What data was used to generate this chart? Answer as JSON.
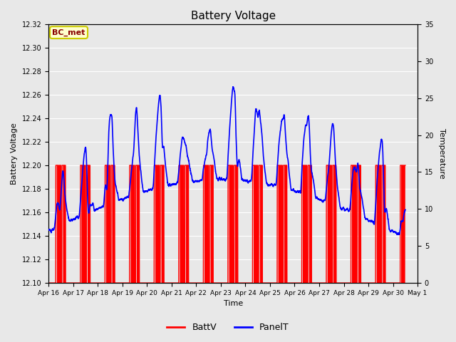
{
  "title": "Battery Voltage",
  "xlabel": "Time",
  "ylabel_left": "Battery Voltage",
  "ylabel_right": "Temperature",
  "ylim_left": [
    12.1,
    12.32
  ],
  "ylim_right": [
    0,
    35
  ],
  "background_color": "#e8e8e8",
  "plot_bg_color": "#e8e8e8",
  "grid_color": "#ffffff",
  "annotation_text": "BC_met",
  "annotation_bg": "#ffffcc",
  "annotation_border": "#cccc00",
  "annotation_text_color": "#880000",
  "tick_labels": [
    "Apr 16",
    "Apr 17",
    "Apr 18",
    "Apr 19",
    "Apr 20",
    "Apr 21",
    "Apr 22",
    "Apr 23",
    "Apr 24",
    "Apr 25",
    "Apr 26",
    "Apr 27",
    "Apr 28",
    "Apr 29",
    "Apr 30",
    "May 1"
  ],
  "batt_color": "#ff0000",
  "panel_color": "#0000ff",
  "legend_batt": "BattV",
  "legend_panel": "PanelT",
  "batt_linewidth": 1.0,
  "panel_linewidth": 1.2
}
